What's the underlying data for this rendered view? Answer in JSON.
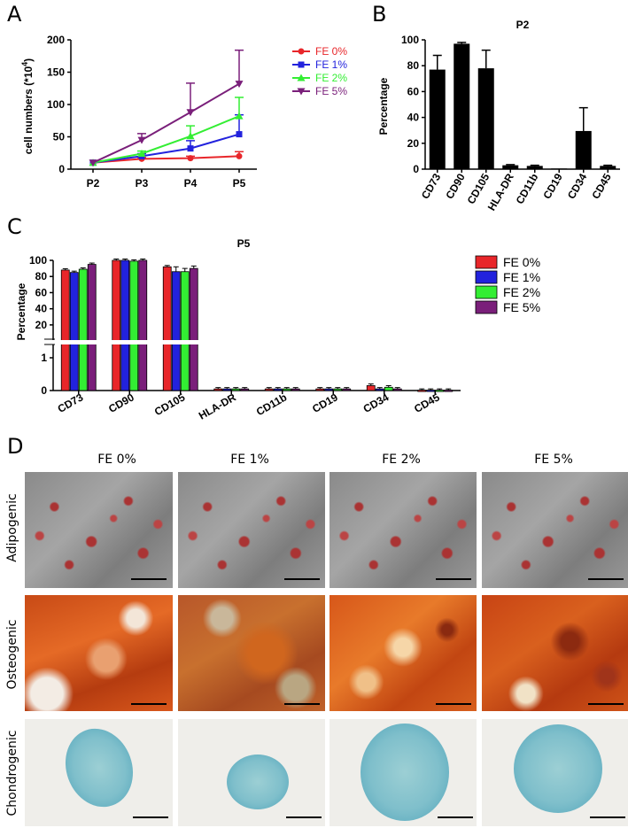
{
  "panels": {
    "a": "A",
    "b": "B",
    "c": "C",
    "d": "D"
  },
  "colors": {
    "fe0": "#e8262a",
    "fe1": "#2222dd",
    "fe2": "#33ee33",
    "fe5": "#7a1f7a",
    "black": "#000000"
  },
  "chart_data": [
    {
      "id": "A",
      "type": "line",
      "title": "",
      "xlabel": "",
      "ylabel": "cell numbers (*10",
      "ylabel_sup": "4",
      "ylabel_close": ")",
      "categories": [
        "P2",
        "P3",
        "P4",
        "P5"
      ],
      "ylim": [
        0,
        200
      ],
      "yticks": [
        "0",
        "50",
        "100",
        "150",
        "200"
      ],
      "legend_position": "right",
      "series": [
        {
          "name": "FE 0%",
          "marker": "circle",
          "values": [
            10,
            16,
            17,
            20
          ],
          "errors": [
            0,
            2,
            3,
            7
          ]
        },
        {
          "name": "FE 1%",
          "marker": "square",
          "values": [
            10,
            20,
            32,
            54
          ],
          "errors": [
            0,
            4,
            12,
            30
          ]
        },
        {
          "name": "FE 2%",
          "marker": "triangle",
          "values": [
            10,
            24,
            51,
            82
          ],
          "errors": [
            0,
            4,
            16,
            29
          ]
        },
        {
          "name": "FE 5%",
          "marker": "triangle-down",
          "values": [
            10,
            45,
            88,
            132
          ],
          "errors": [
            0,
            10,
            45,
            52
          ]
        }
      ]
    },
    {
      "id": "B",
      "type": "bar",
      "title": "P2",
      "xlabel": "",
      "ylabel": "Percentage",
      "categories": [
        "CD73",
        "CD90",
        "CD105",
        "HLA-DR",
        "CD11b",
        "CD19",
        "CD34",
        "CD45"
      ],
      "values": [
        77,
        97,
        78,
        3,
        2.5,
        0.5,
        29.5,
        2.5
      ],
      "errors": [
        11,
        1,
        14,
        0.5,
        0.5,
        0,
        18,
        0.5
      ],
      "ylim": [
        0,
        100
      ],
      "yticks": [
        "0",
        "20",
        "40",
        "60",
        "80",
        "100"
      ]
    },
    {
      "id": "C",
      "type": "bar",
      "title": "P5",
      "xlabel": "",
      "ylabel": "Percentage",
      "categories": [
        "CD73",
        "CD90",
        "CD105",
        "HLA-DR",
        "CD11b",
        "CD19",
        "CD34",
        "CD45"
      ],
      "ylim": [
        0,
        100
      ],
      "axis_break": [
        1,
        10
      ],
      "yticks_upper": [
        "20",
        "40",
        "60",
        "80",
        "100"
      ],
      "yticks_lower": [
        "0",
        "1"
      ],
      "legend_position": "right",
      "series": [
        {
          "name": "FE 0%",
          "values": [
            88,
            100,
            92,
            0.05,
            0.05,
            0.05,
            0.15,
            0.01
          ],
          "errors": [
            1,
            0.5,
            0.5,
            0.02,
            0.02,
            0.02,
            0.05,
            0.01
          ]
        },
        {
          "name": "FE 1%",
          "values": [
            85,
            100,
            86,
            0.05,
            0.05,
            0.05,
            0.05,
            0.01
          ],
          "errors": [
            1.5,
            0.5,
            6,
            0.02,
            0.02,
            0.02,
            0.02,
            0.01
          ]
        },
        {
          "name": "FE 2%",
          "values": [
            89,
            99,
            86,
            0.05,
            0.05,
            0.05,
            0.1,
            0.01
          ],
          "errors": [
            1,
            0.5,
            4,
            0.02,
            0.02,
            0.02,
            0.05,
            0.01
          ]
        },
        {
          "name": "FE 5%",
          "values": [
            95,
            100,
            90,
            0.05,
            0.05,
            0.05,
            0.05,
            0.01
          ],
          "errors": [
            1,
            0.5,
            3,
            0.02,
            0.02,
            0.02,
            0.02,
            0.01
          ]
        }
      ]
    }
  ],
  "micrographs": {
    "columns": [
      "FE 0%",
      "FE 1%",
      "FE 2%",
      "FE 5%"
    ],
    "rows": [
      "Adipogenic",
      "Osteogenic",
      "Chondrogenic"
    ]
  }
}
